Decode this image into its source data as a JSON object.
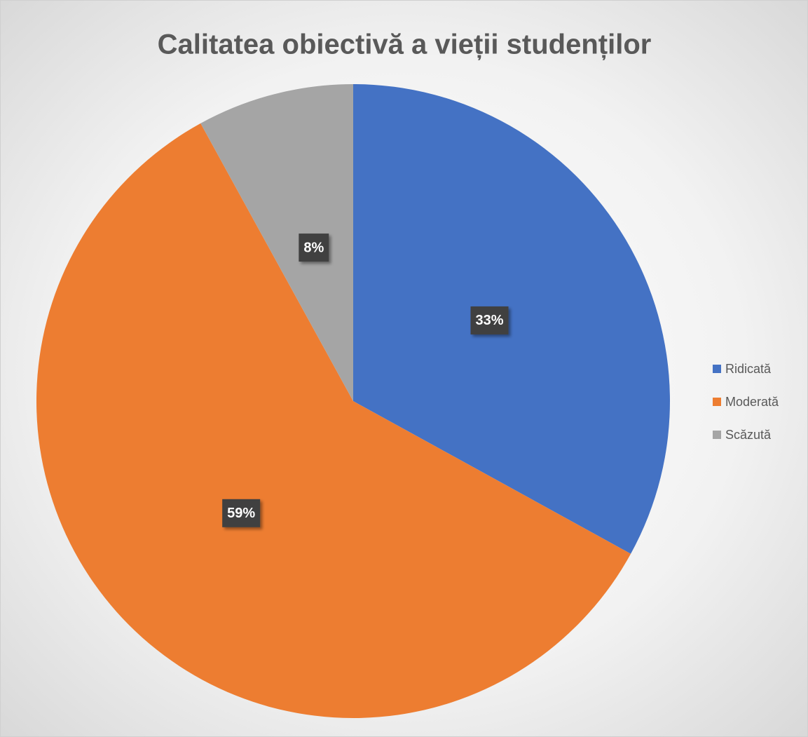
{
  "chart_data": {
    "type": "pie",
    "title": "Calitatea obiectivă a vieții studenților",
    "categories": [
      "Ridicată",
      "Moderată",
      "Scăzută"
    ],
    "values": [
      33,
      59,
      8
    ],
    "value_labels": [
      "33%",
      "59%",
      "8%"
    ],
    "colors": [
      "#4472c4",
      "#ed7d31",
      "#a5a5a5"
    ],
    "legend": "right"
  }
}
